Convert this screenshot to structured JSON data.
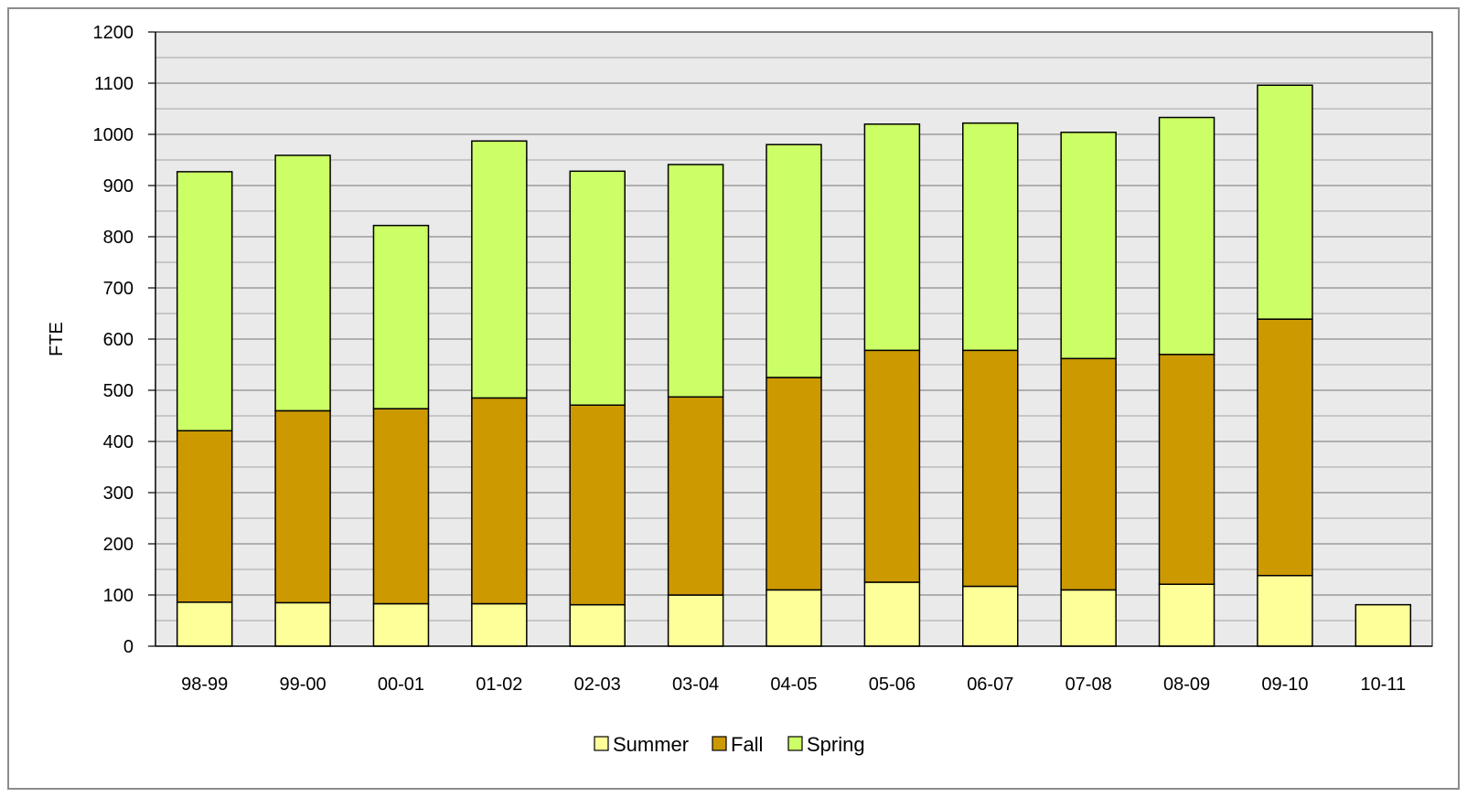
{
  "chart_data": {
    "type": "bar",
    "stacked": true,
    "title": "",
    "xlabel": "",
    "ylabel": "FTE",
    "ylim": [
      0,
      1200
    ],
    "ytick_step": 100,
    "grid": true,
    "legend_position": "bottom",
    "categories": [
      "98-99",
      "99-00",
      "00-01",
      "01-02",
      "02-03",
      "03-04",
      "04-05",
      "05-06",
      "06-07",
      "07-08",
      "08-09",
      "09-10",
      "10-11"
    ],
    "series": [
      {
        "name": "Summer",
        "color": "#ffff99",
        "values": [
          86,
          85,
          83,
          83,
          81,
          100,
          110,
          125,
          117,
          110,
          121,
          138,
          81
        ]
      },
      {
        "name": "Fall",
        "color": "#cc9900",
        "values": [
          335,
          375,
          381,
          402,
          390,
          387,
          415,
          453,
          461,
          452,
          449,
          501,
          0
        ]
      },
      {
        "name": "Spring",
        "color": "#ccff66",
        "values": [
          506,
          499,
          358,
          502,
          457,
          454,
          455,
          442,
          444,
          442,
          463,
          457,
          0
        ]
      }
    ],
    "plot_background": "#eaeaea",
    "gridline_color": "#8c8c8c"
  }
}
